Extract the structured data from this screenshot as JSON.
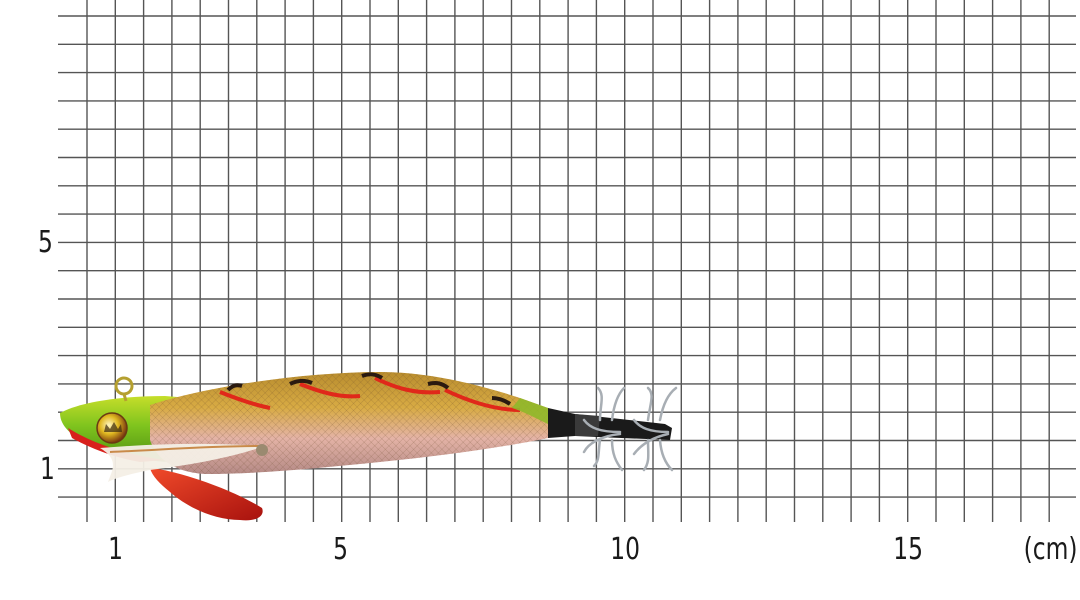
{
  "image": {
    "kind": "product photo of a squid jig lure on a measurement grid",
    "grid_unit": "0.5 cm per cell",
    "x_axis": {
      "ticks": [
        "1",
        "5",
        "10",
        "15"
      ],
      "unit": "(cm)"
    },
    "y_axis": {
      "ticks": [
        "5",
        "1"
      ]
    },
    "colors": {
      "grid_line": "#555555",
      "head_green": "#7fc41e",
      "head_yellow": "#d9d21a",
      "body_gold": "#c9a23a",
      "body_pink": "#d9a3a0",
      "stripe_red": "#e0281a",
      "stripe_dark": "#2a1a10",
      "keel_red": "#d8201c",
      "tail_black": "#1a1a1a",
      "hook_silver": "#a8aeb4"
    },
    "icons": [
      "squid-jig-lure",
      "eye",
      "feather",
      "hook-crown"
    ]
  }
}
